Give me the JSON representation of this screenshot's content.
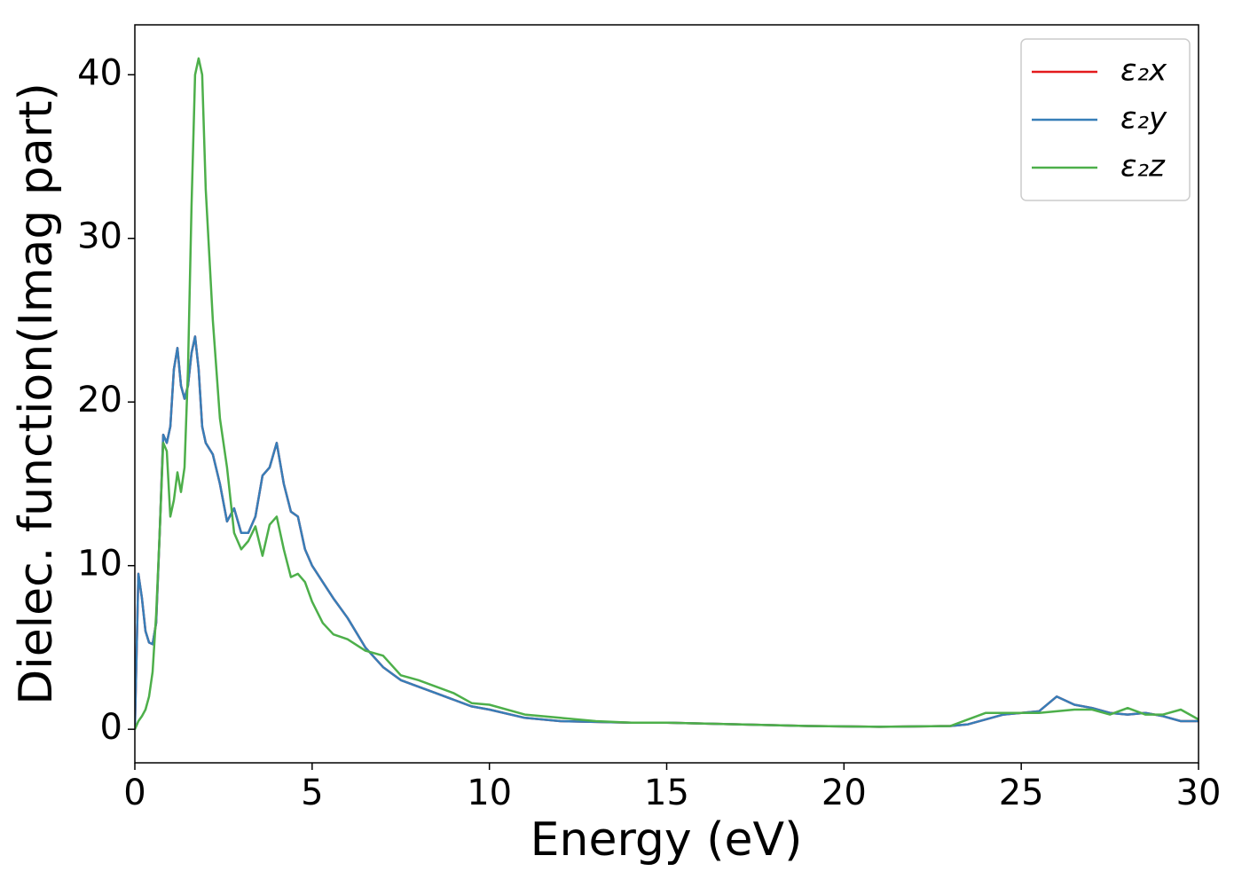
{
  "chart_data": {
    "type": "line",
    "xlabel": "Energy (eV)",
    "ylabel": "Dielec. function(Imag part)",
    "x": [
      0,
      0.1,
      0.2,
      0.3,
      0.4,
      0.5,
      0.6,
      0.7,
      0.8,
      0.9,
      1.0,
      1.1,
      1.2,
      1.3,
      1.4,
      1.5,
      1.6,
      1.7,
      1.8,
      1.9,
      2.0,
      2.2,
      2.4,
      2.6,
      2.8,
      3.0,
      3.2,
      3.4,
      3.6,
      3.8,
      4.0,
      4.2,
      4.4,
      4.6,
      4.8,
      5.0,
      5.3,
      5.6,
      6.0,
      6.5,
      7.0,
      7.5,
      8,
      8.5,
      9,
      9.5,
      10,
      11,
      12,
      13,
      14,
      15,
      17,
      19,
      21,
      23,
      23.5,
      24,
      24.5,
      25,
      25.5,
      26,
      26.5,
      27,
      27.5,
      28,
      28.5,
      29,
      29.5,
      30
    ],
    "series": [
      {
        "name": "ε₂x",
        "color": "#e41a1c",
        "values": [
          0,
          9.5,
          8,
          6,
          5.3,
          5.2,
          6.5,
          12,
          18,
          17.5,
          18.5,
          22,
          23.3,
          21,
          20.2,
          21,
          23,
          24,
          22,
          18.5,
          17.5,
          16.8,
          15,
          12.7,
          13.5,
          12,
          12,
          13,
          15.5,
          16,
          17.5,
          15,
          13.3,
          13,
          11,
          10,
          9,
          8,
          6.8,
          5,
          3.8,
          3,
          2.6,
          2.2,
          1.8,
          1.4,
          1.2,
          0.7,
          0.5,
          0.45,
          0.4,
          0.4,
          0.3,
          0.2,
          0.15,
          0.2,
          0.3,
          0.6,
          0.9,
          1.0,
          1.1,
          2.0,
          1.5,
          1.3,
          1.0,
          0.9,
          1.0,
          0.8,
          0.5,
          0.5
        ]
      },
      {
        "name": "ε₂y",
        "color": "#377eb8",
        "values": [
          0,
          9.5,
          8,
          6,
          5.3,
          5.2,
          6.5,
          12,
          18,
          17.5,
          18.5,
          22,
          23.3,
          21,
          20.2,
          21,
          23,
          24,
          22,
          18.5,
          17.5,
          16.8,
          15,
          12.7,
          13.5,
          12,
          12,
          13,
          15.5,
          16,
          17.5,
          15,
          13.3,
          13,
          11,
          10,
          9,
          8,
          6.8,
          5,
          3.8,
          3,
          2.6,
          2.2,
          1.8,
          1.4,
          1.2,
          0.7,
          0.5,
          0.45,
          0.4,
          0.4,
          0.3,
          0.2,
          0.15,
          0.2,
          0.3,
          0.6,
          0.9,
          1.0,
          1.1,
          2.0,
          1.5,
          1.3,
          1.0,
          0.9,
          1.0,
          0.8,
          0.5,
          0.5
        ]
      },
      {
        "name": "ε₂z",
        "color": "#4daf4a",
        "values": [
          0,
          0.5,
          0.8,
          1.2,
          2,
          3.5,
          7,
          12,
          17.5,
          17,
          13,
          14,
          15.7,
          14.5,
          16,
          22,
          32,
          40,
          41,
          40,
          33,
          25,
          19,
          16,
          12,
          11,
          11.5,
          12.4,
          10.6,
          12.5,
          13,
          11,
          9.3,
          9.5,
          9,
          7.8,
          6.5,
          5.8,
          5.5,
          4.8,
          4.5,
          3.3,
          3.0,
          2.6,
          2.2,
          1.6,
          1.5,
          0.9,
          0.7,
          0.5,
          0.4,
          0.4,
          0.3,
          0.2,
          0.15,
          0.2,
          0.6,
          1.0,
          1.0,
          1.0,
          1.0,
          1.1,
          1.2,
          1.2,
          0.9,
          1.3,
          0.9,
          0.9,
          1.2,
          0.6
        ]
      }
    ],
    "xlim": [
      0,
      30
    ],
    "xticks": [
      0,
      5,
      10,
      15,
      20,
      25,
      30
    ],
    "ylim": [
      -2.05,
      43.05
    ],
    "yticks": [
      0,
      10,
      20,
      30,
      40
    ],
    "legend": "upper right",
    "grid": false
  }
}
